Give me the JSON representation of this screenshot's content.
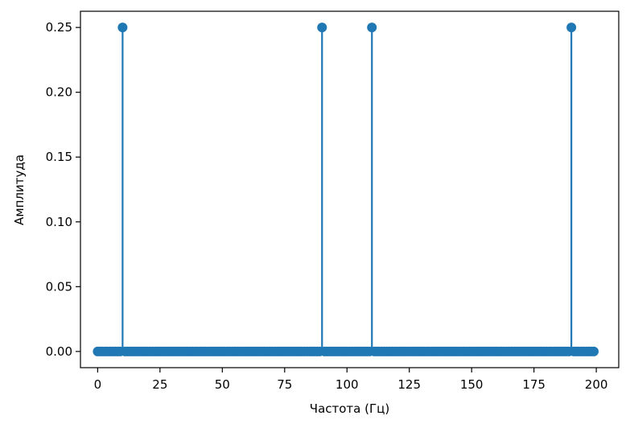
{
  "chart_data": {
    "type": "stem",
    "title": "",
    "xlabel": "Частота (Гц)",
    "ylabel": "Амплитуда",
    "xlim": [
      -6.9,
      209
    ],
    "ylim": [
      -0.0125,
      0.2625
    ],
    "xticks": [
      0,
      25,
      50,
      75,
      100,
      125,
      150,
      175,
      200
    ],
    "xtick_labels": [
      "0",
      "25",
      "50",
      "75",
      "100",
      "125",
      "150",
      "175",
      "200"
    ],
    "yticks": [
      0.0,
      0.05,
      0.1,
      0.15,
      0.2,
      0.25
    ],
    "ytick_labels": [
      "0.00",
      "0.05",
      "0.10",
      "0.15",
      "0.20",
      "0.25"
    ],
    "grid": false,
    "x_sampling": {
      "start": 0,
      "stop": 199,
      "step": 1
    },
    "nonzero_points": [
      {
        "x": 10,
        "y": 0.25
      },
      {
        "x": 90,
        "y": 0.25
      },
      {
        "x": 110,
        "y": 0.25
      },
      {
        "x": 190,
        "y": 0.25
      }
    ],
    "default_y": 0.0,
    "colors": {
      "marker": "#1f77b4",
      "stem": "#1f77b4",
      "baseline": "#d62728"
    }
  }
}
